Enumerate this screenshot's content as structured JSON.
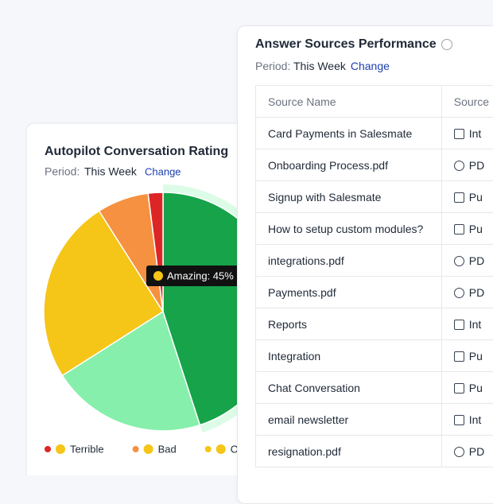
{
  "left_card": {
    "title": "Autopilot Conversation Rating",
    "period_label": "Period:",
    "period_value": "This Week",
    "change": "Change"
  },
  "chart_data": {
    "type": "pie",
    "categories": [
      "Terrible",
      "Bad",
      "Ok",
      null,
      "Amazing"
    ],
    "values": [
      2,
      7,
      25,
      21,
      45
    ],
    "colors": [
      "#dc2626",
      "#f59140",
      "#f5c518",
      "#86efac",
      "#16a34a"
    ],
    "tooltip": "Amazing: 45%"
  },
  "right_card": {
    "title": "Answer Sources Performance",
    "period_label": "Period:",
    "period_value": "This Week",
    "change": "Change",
    "table": {
      "header": [
        "Source Name",
        "Source"
      ],
      "rows": [
        [
          "Card Payments in Salesmate",
          "Int"
        ],
        [
          "Onboarding Process.pdf",
          "PD"
        ],
        [
          "Signup with Salesmate",
          "Pu"
        ],
        [
          "How to setup custom modules?",
          "Pu"
        ],
        [
          "integrations.pdf",
          "PD"
        ],
        [
          "Payments.pdf",
          "PD"
        ],
        [
          "Reports",
          "Int"
        ],
        [
          "Integration",
          "Pu"
        ],
        [
          "Chat Conversation",
          "Pu"
        ],
        [
          "email newsletter",
          "Int"
        ],
        [
          "resignation.pdf",
          "PD"
        ]
      ],
      "icons": [
        "doc",
        "dots",
        "doc",
        "doc",
        "dots",
        "dots",
        "doc",
        "doc",
        "doc",
        "doc",
        "dots"
      ]
    }
  }
}
